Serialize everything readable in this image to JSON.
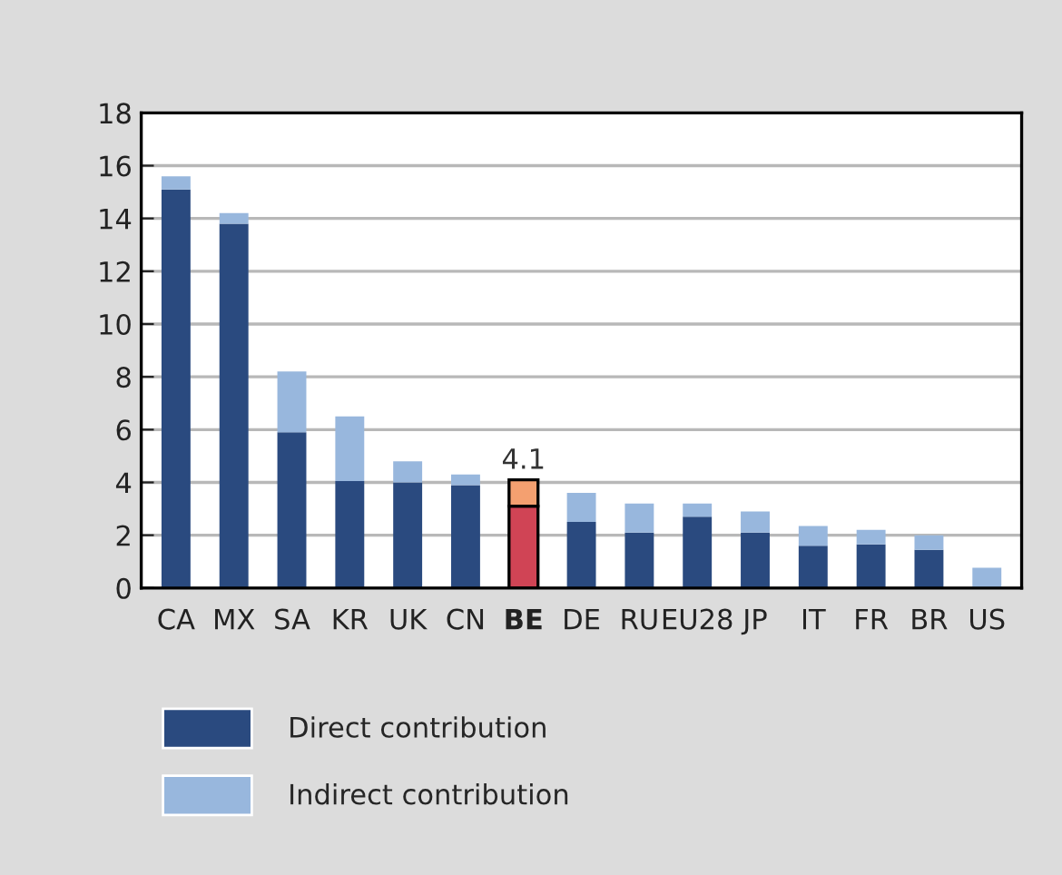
{
  "chart_data": {
    "type": "bar",
    "stacked": true,
    "categories": [
      "CA",
      "MX",
      "SA",
      "KR",
      "UK",
      "CN",
      "BE",
      "DE",
      "RU",
      "EU28",
      "JP",
      "IT",
      "FR",
      "BR",
      "US"
    ],
    "series": [
      {
        "name": "Direct contribution",
        "color": "#2a4a7f",
        "colors": [
          "#2a4a7f",
          "#2a4a7f",
          "#2a4a7f",
          "#2a4a7f",
          "#2a4a7f",
          "#2a4a7f",
          "#d04455",
          "#2a4a7f",
          "#2a4a7f",
          "#2a4a7f",
          "#2a4a7f",
          "#2a4a7f",
          "#2a4a7f",
          "#2a4a7f",
          "#2a4a7f"
        ],
        "values": [
          15.1,
          13.8,
          5.9,
          4.05,
          4.0,
          3.9,
          3.1,
          2.5,
          2.1,
          2.7,
          2.1,
          1.6,
          1.65,
          1.45,
          0
        ]
      },
      {
        "name": "Indirect contribution",
        "color": "#98b7dd",
        "colors": [
          "#98b7dd",
          "#98b7dd",
          "#98b7dd",
          "#98b7dd",
          "#98b7dd",
          "#98b7dd",
          "#f4a070",
          "#98b7dd",
          "#98b7dd",
          "#98b7dd",
          "#98b7dd",
          "#98b7dd",
          "#98b7dd",
          "#98b7dd",
          "#98b7dd"
        ],
        "values": [
          0.5,
          0.4,
          2.3,
          2.45,
          0.8,
          0.4,
          1.0,
          1.1,
          1.1,
          0.5,
          0.8,
          0.75,
          0.55,
          0.55,
          0.77
        ]
      }
    ],
    "totals": [
      null,
      null,
      null,
      null,
      null,
      null,
      "4.1",
      null,
      null,
      null,
      null,
      null,
      null,
      null,
      null
    ],
    "ylim": [
      0,
      18
    ],
    "yticks": [
      0,
      2,
      4,
      6,
      8,
      10,
      12,
      14,
      16,
      18
    ],
    "grid": "y",
    "legend": "bottom left"
  }
}
